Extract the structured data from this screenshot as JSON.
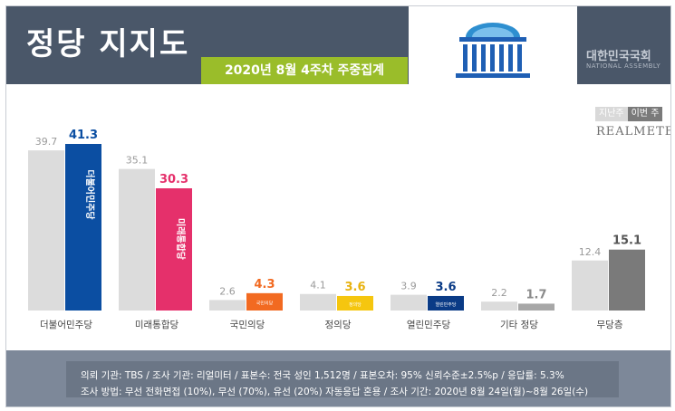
{
  "header": {
    "title": "정당 지지도",
    "subtitle": "2020년 8월 4주차 주중집계",
    "org_name": "대한민국국회",
    "org_name_en": "NATIONAL ASSEMBLY"
  },
  "legend": {
    "prev": "지난주",
    "curr": "이번 주"
  },
  "brand": "REALMETER",
  "colors": {
    "header_bg": "#4a5769",
    "badge": "#9abd2a",
    "prev_bar": "#dcdcdc",
    "other": "#8a8a8a"
  },
  "chart_data": {
    "type": "bar",
    "categories": [
      "더불어민주당",
      "미래통합당",
      "국민의당",
      "정의당",
      "열린민주당",
      "기타 정당",
      "무당층"
    ],
    "series": [
      {
        "name": "지난주",
        "values": [
          39.7,
          35.1,
          2.6,
          4.1,
          3.9,
          2.2,
          12.4
        ]
      },
      {
        "name": "이번 주",
        "values": [
          41.3,
          30.3,
          4.3,
          3.6,
          3.6,
          1.7,
          15.1
        ]
      }
    ],
    "current_colors": [
      "#0b4ea2",
      "#e5306b",
      "#f26a21",
      "#f5c60f",
      "#0a3b86",
      "#a7a7a7",
      "#7a7a7a"
    ],
    "current_label_colors": [
      "#0b4ea2",
      "#e5306b",
      "#f26a21",
      "#e8b20f",
      "#0a3b86",
      "#8a8a8a",
      "#555555"
    ],
    "bar_marks": [
      "더불어민주당",
      "미래통합당",
      "국민의당",
      "정의당",
      "열린민주당",
      "",
      ""
    ],
    "ylim": [
      0,
      45
    ],
    "grid": false,
    "legend_position": "top-right"
  },
  "footer": {
    "line1": "의뢰 기관: TBS / 조사 기관: 리얼미터 / 표본수: 전국 성인 1,512명 / 표본오차: 95% 신뢰수준±2.5%p / 응답률: 5.3%",
    "line2": "조사 방법: 무선 전화면접 (10%), 무선 (70%), 유선 (20%) 자동응답 혼용 / 조사 기간: 2020년 8월 24일(월)~8월 26일(수)"
  }
}
